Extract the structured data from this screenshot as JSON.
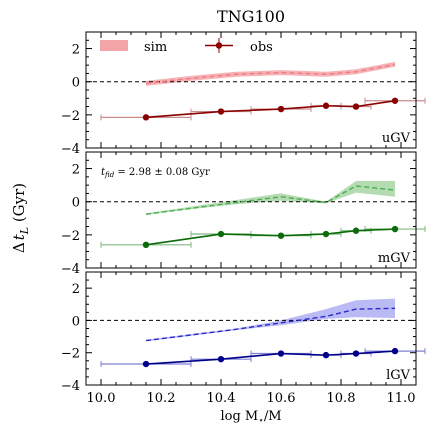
{
  "figure": {
    "title": "TNG100",
    "xlabel": "log Mₒ/M⊙",
    "xlabel_parts": {
      "main": "log M",
      "sub_star": "⋆",
      "slash": "/M",
      "sub_sun": "⊙"
    },
    "ylabel_parts": {
      "delta": "Δ",
      "t": "t",
      "sub": "L",
      "unit": " (Gyr)"
    }
  },
  "legend": {
    "sim_label": "sim",
    "obs_label": "obs"
  },
  "annotation": {
    "prefix": "t",
    "sub": "fid",
    "rest": " = 2.98 ± 0.08 Gyr"
  },
  "colors": {
    "u_sim": "#f4a5a8",
    "u_sim_line": "#ee7b82",
    "u_obs": "#8b0000",
    "u_obs_err": "#c98b8b",
    "m_sim": "#a8d5a4",
    "m_sim_line": "#4caf50",
    "m_obs": "#0b6b0b",
    "m_obs_err": "#7fb87f",
    "l_sim": "#aeaef2",
    "l_sim_line": "#2a2ad0",
    "l_obs": "#00008b",
    "l_obs_err": "#8080d0"
  },
  "chart_data": [
    {
      "type": "line",
      "panel_label": "uGV",
      "xlim": [
        9.95,
        11.05
      ],
      "ylim": [
        -4,
        3
      ],
      "xticks": [
        10.0,
        10.2,
        10.4,
        10.6,
        10.8,
        11.0
      ],
      "yticks": [
        -4,
        -2,
        0,
        2
      ],
      "ytick_labels": [
        "−4",
        "−2",
        "0",
        "2"
      ],
      "show_xtick_labels": false,
      "reference_line": 0,
      "series": [
        {
          "name": "sim",
          "x": [
            10.15,
            10.3,
            10.45,
            10.6,
            10.75,
            10.85,
            10.98
          ],
          "y": [
            -0.1,
            0.2,
            0.45,
            0.55,
            0.45,
            0.6,
            1.05
          ],
          "y_low": [
            -0.25,
            0.05,
            0.3,
            0.4,
            0.3,
            0.45,
            0.9
          ],
          "y_high": [
            0.05,
            0.35,
            0.6,
            0.7,
            0.6,
            0.75,
            1.2
          ]
        },
        {
          "name": "obs",
          "x": [
            10.15,
            10.4,
            10.6,
            10.75,
            10.85,
            10.98
          ],
          "y": [
            -2.15,
            -1.8,
            -1.65,
            -1.45,
            -1.5,
            -1.15
          ],
          "x_err": [
            0.15,
            0.1,
            0.1,
            0.05,
            0.05,
            0.1
          ]
        }
      ]
    },
    {
      "type": "line",
      "panel_label": "mGV",
      "xlim": [
        9.95,
        11.05
      ],
      "ylim": [
        -4,
        3
      ],
      "xticks": [
        10.0,
        10.2,
        10.4,
        10.6,
        10.8,
        11.0
      ],
      "yticks": [
        -4,
        -2,
        0,
        2
      ],
      "ytick_labels": [
        "−4",
        "−2",
        "0",
        "2"
      ],
      "show_xtick_labels": false,
      "reference_line": 0,
      "series": [
        {
          "name": "sim",
          "x": [
            10.15,
            10.3,
            10.45,
            10.6,
            10.75,
            10.85,
            10.98
          ],
          "y": [
            -0.75,
            -0.4,
            -0.05,
            0.3,
            -0.05,
            0.95,
            0.7
          ],
          "y_low": [
            -0.8,
            -0.45,
            -0.15,
            0.05,
            -0.1,
            0.55,
            0.3
          ],
          "y_high": [
            -0.7,
            -0.3,
            0.1,
            0.5,
            0.0,
            1.25,
            1.25
          ]
        },
        {
          "name": "obs",
          "x": [
            10.15,
            10.4,
            10.6,
            10.75,
            10.85,
            10.98
          ],
          "y": [
            -2.6,
            -1.95,
            -2.05,
            -1.95,
            -1.75,
            -1.65
          ],
          "x_err": [
            0.15,
            0.1,
            0.1,
            0.05,
            0.05,
            0.1
          ]
        }
      ]
    },
    {
      "type": "line",
      "panel_label": "lGV",
      "xlim": [
        9.95,
        11.05
      ],
      "ylim": [
        -4,
        3
      ],
      "xticks": [
        10.0,
        10.2,
        10.4,
        10.6,
        10.8,
        11.0
      ],
      "xtick_labels": [
        "10.0",
        "10.2",
        "10.4",
        "10.6",
        "10.8",
        "11.0"
      ],
      "yticks": [
        -4,
        -2,
        0,
        2
      ],
      "ytick_labels": [
        "−4",
        "−2",
        "0",
        "2"
      ],
      "show_xtick_labels": true,
      "reference_line": 0,
      "series": [
        {
          "name": "sim",
          "x": [
            10.15,
            10.3,
            10.45,
            10.6,
            10.75,
            10.85,
            10.98
          ],
          "y": [
            -1.25,
            -0.9,
            -0.55,
            -0.15,
            0.25,
            0.7,
            0.75
          ],
          "y_low": [
            -1.3,
            -0.95,
            -0.6,
            -0.3,
            0.1,
            0.2,
            0.15
          ],
          "y_high": [
            -1.2,
            -0.85,
            -0.5,
            0.0,
            0.7,
            1.25,
            1.35
          ]
        },
        {
          "name": "obs",
          "x": [
            10.15,
            10.4,
            10.6,
            10.75,
            10.85,
            10.98
          ],
          "y": [
            -2.7,
            -2.4,
            -2.05,
            -2.15,
            -2.05,
            -1.9
          ],
          "x_err": [
            0.15,
            0.1,
            0.1,
            0.05,
            0.05,
            0.1
          ]
        }
      ]
    }
  ]
}
